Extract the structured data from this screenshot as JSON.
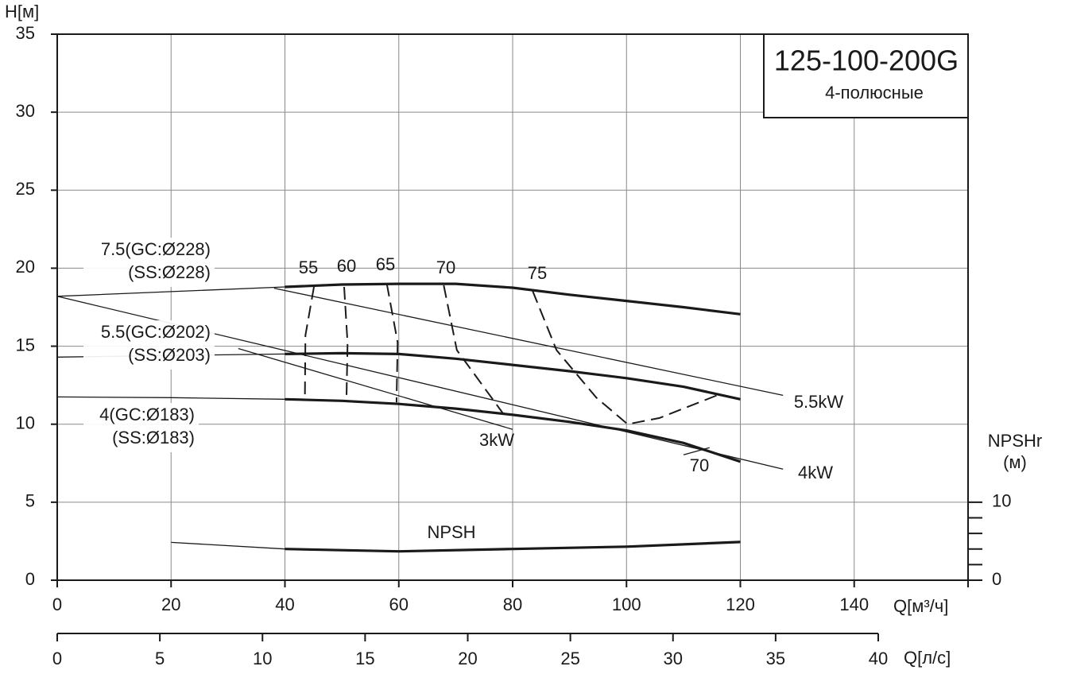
{
  "chart_data": {
    "type": "line",
    "title": "125-100-200G",
    "subtitle": "4-полюсные",
    "x_label": "Q[м³/ч]",
    "y_label": "H[м]",
    "x2_label": "Q[л/с]",
    "y2_label": [
      "NPSHr",
      "(м)"
    ],
    "xlim": [
      0,
      160
    ],
    "xticks": [
      0,
      20,
      40,
      60,
      80,
      100,
      120,
      140
    ],
    "ylim": [
      0,
      35
    ],
    "yticks": [
      0,
      5,
      10,
      15,
      20,
      25,
      30,
      35
    ],
    "x2lim": [
      0,
      40
    ],
    "x2ticks": [
      0,
      5,
      10,
      15,
      20,
      25,
      30,
      35,
      40
    ],
    "y2lim": [
      0,
      70
    ],
    "y2ticks": [
      0,
      10
    ],
    "y2minor_ticks": [
      2,
      4,
      6,
      8
    ],
    "grid": true,
    "operating_range": [
      40,
      120
    ],
    "series": [
      {
        "name": [
          "7.5(GC:Ø228)",
          "(SS:Ø228)"
        ],
        "color": "#1a1a1a",
        "x": [
          0,
          20,
          40,
          50,
          60,
          70,
          80,
          90,
          100,
          110,
          120
        ],
        "values": [
          18.2,
          18.5,
          18.8,
          18.95,
          19.0,
          19.0,
          18.75,
          18.3,
          17.9,
          17.5,
          17.05
        ]
      },
      {
        "name": [
          "5.5(GC:Ø202)",
          "(SS:Ø203)"
        ],
        "color": "#1a1a1a",
        "x": [
          0,
          20,
          40,
          50,
          60,
          70,
          80,
          90,
          100,
          110,
          120
        ],
        "values": [
          14.3,
          14.4,
          14.5,
          14.55,
          14.5,
          14.2,
          13.8,
          13.4,
          12.95,
          12.4,
          11.6
        ]
      },
      {
        "name": [
          "4(GC:Ø183)",
          "(SS:Ø183)"
        ],
        "color": "#1a1a1a",
        "x": [
          0,
          20,
          40,
          50,
          60,
          70,
          80,
          90,
          100,
          110,
          120
        ],
        "values": [
          11.75,
          11.7,
          11.6,
          11.5,
          11.3,
          11.0,
          10.6,
          10.15,
          9.6,
          8.8,
          7.6
        ]
      }
    ],
    "power_lines": [
      {
        "label": "5.5kW",
        "x": [
          38.1,
          127.5
        ],
        "values": [
          18.72,
          11.85
        ]
      },
      {
        "label": "4kW",
        "x": [
          0,
          127.5
        ],
        "values": [
          18.2,
          7.12
        ]
      },
      {
        "label": "3kW",
        "x": [
          31.8,
          80
        ],
        "values": [
          14.85,
          9.67
        ]
      }
    ],
    "efficiency": [
      {
        "label": 55,
        "x": [
          45.1,
          43.6,
          43.5
        ],
        "values": [
          18.8,
          15.7,
          11.55
        ]
      },
      {
        "label": 60,
        "x": [
          50.4,
          51.0,
          50.8
        ],
        "values": [
          18.8,
          15.2,
          11.55
        ]
      },
      {
        "label": 65,
        "x": [
          57.9,
          59.8,
          59.6
        ],
        "values": [
          19.0,
          15.25,
          11.4
        ]
      },
      {
        "label": 70,
        "x": [
          67.9,
          70.2,
          78.3
        ],
        "values": [
          18.9,
          14.75,
          10.7
        ]
      },
      {
        "label": 75,
        "x": [
          83.5,
          87.7,
          94.7,
          100.2,
          105.8,
          116.6
        ],
        "values": [
          18.55,
          14.75,
          11.7,
          10.0,
          10.4,
          11.95
        ]
      },
      {
        "label": 70,
        "x": [
          110,
          114.6
        ],
        "values": [
          8.04,
          8.5
        ]
      }
    ],
    "npsh": {
      "name": "NPSH",
      "axis": "y2",
      "x": [
        20,
        40,
        60,
        80,
        100,
        120
      ],
      "values": [
        4.85,
        4.0,
        3.7,
        4.0,
        4.3,
        4.9
      ]
    }
  }
}
